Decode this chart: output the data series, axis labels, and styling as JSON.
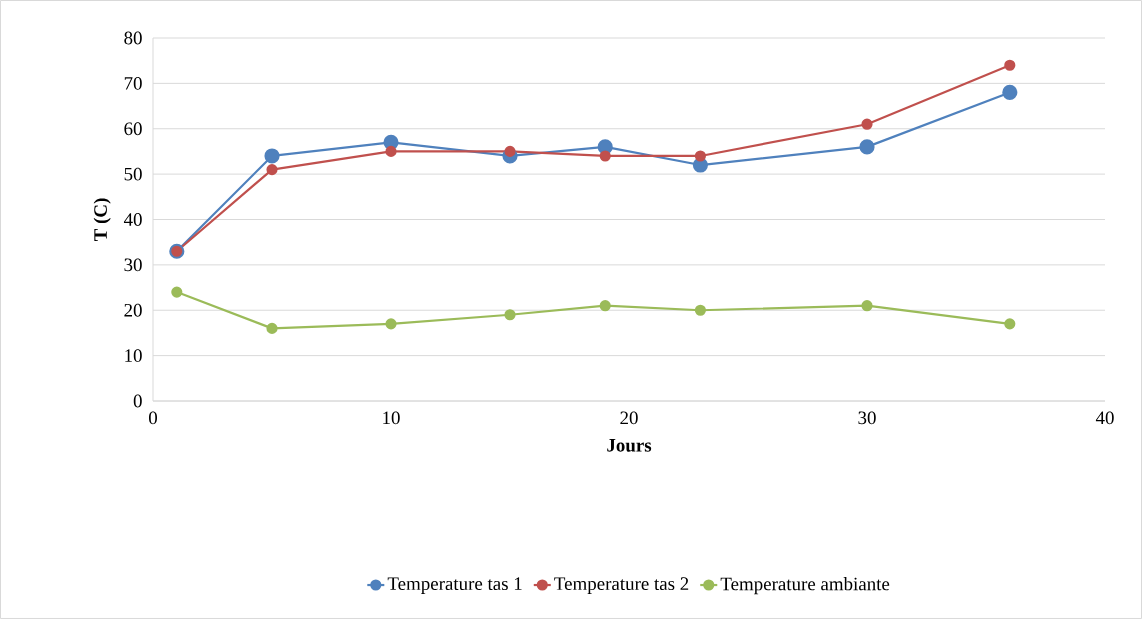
{
  "chart_data": {
    "type": "line",
    "xlabel": "Jours",
    "ylabel": "T (C)",
    "x": [
      1,
      5,
      10,
      15,
      19,
      23,
      30,
      36
    ],
    "series": [
      {
        "name": "Temperature tas 1",
        "color": "#4f81bd",
        "values": [
          33,
          54,
          57,
          54,
          56,
          52,
          56,
          68
        ]
      },
      {
        "name": "Temperature tas 2",
        "color": "#c0504d",
        "values": [
          33,
          51,
          55,
          55,
          54,
          54,
          61,
          74
        ]
      },
      {
        "name": "Temperature ambiante",
        "color": "#9bbb59",
        "values": [
          24,
          16,
          17,
          19,
          21,
          20,
          21,
          17
        ]
      }
    ],
    "xlim": [
      0,
      40
    ],
    "ylim": [
      0,
      80
    ],
    "xticks": [
      0,
      10,
      20,
      30,
      40
    ],
    "yticks": [
      0,
      10,
      20,
      30,
      40,
      50,
      60,
      70,
      80
    ],
    "grid": "y",
    "legend": "bottom",
    "marker": "circle",
    "line_style": "solid"
  }
}
